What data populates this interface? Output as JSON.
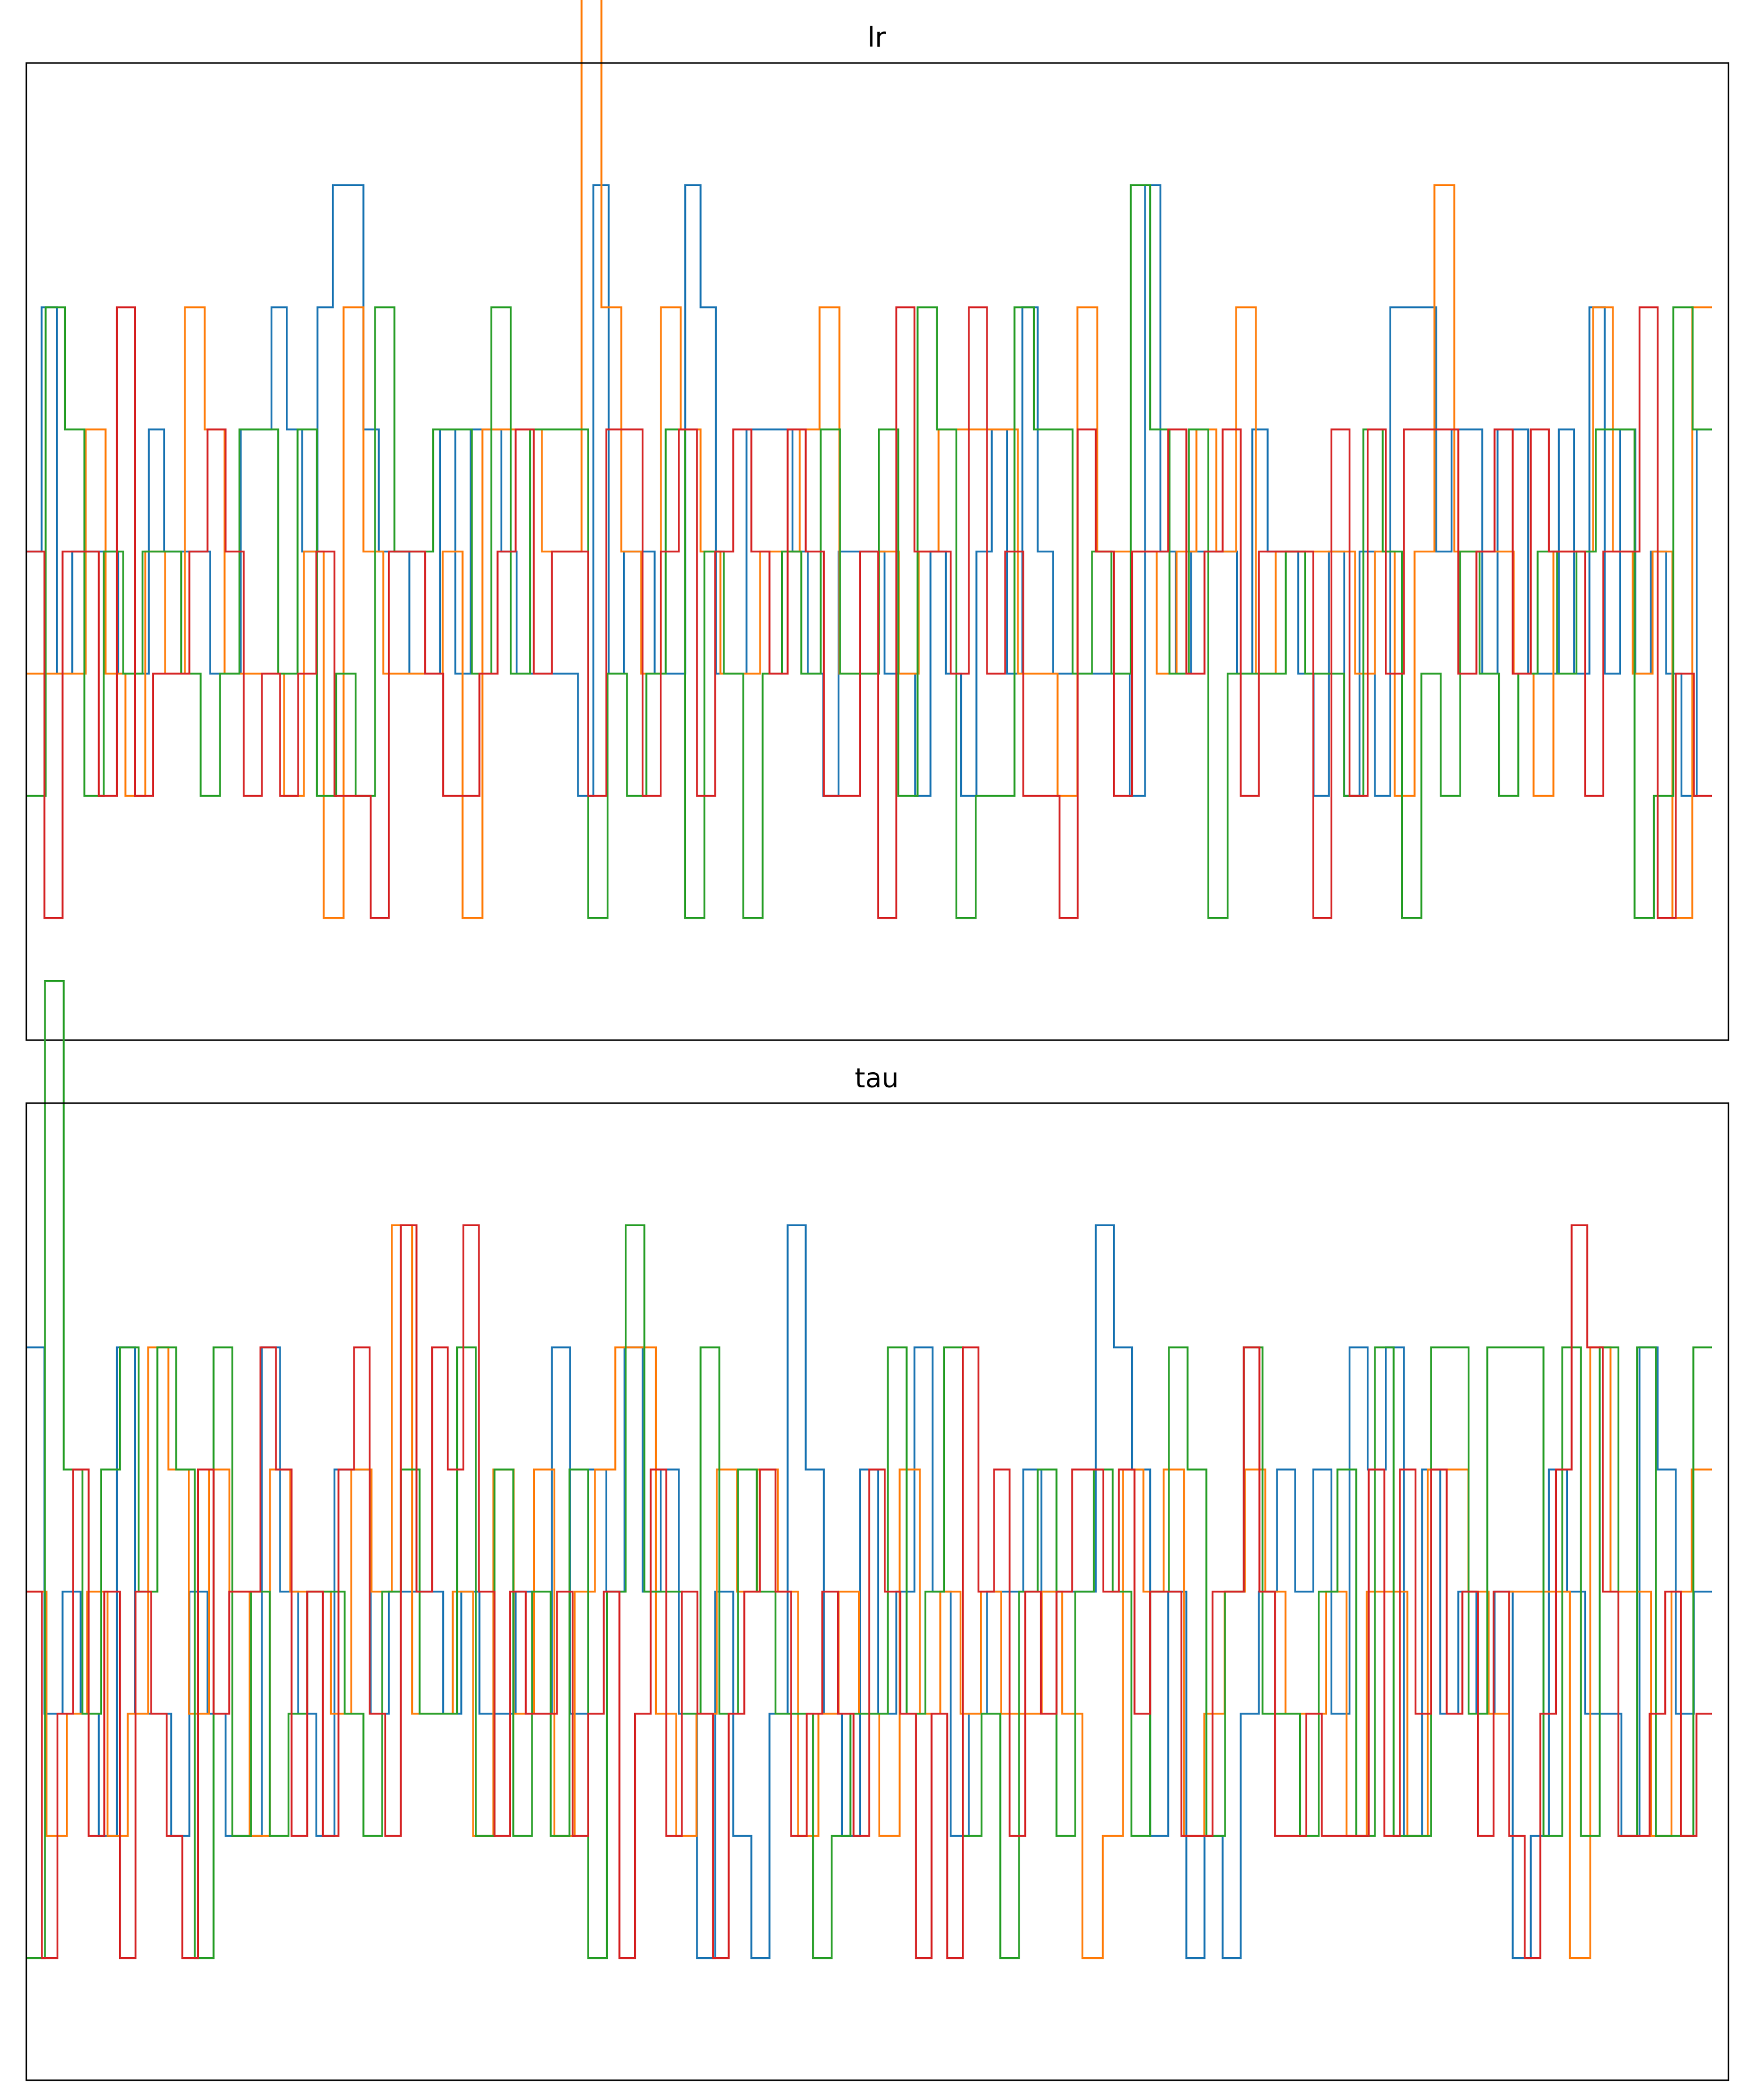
{
  "chart_data": [
    {
      "type": "line",
      "step": "post",
      "title": "lr",
      "xlabel": "",
      "ylabel": "",
      "ticks": "none",
      "grid": false,
      "legend": "none",
      "ylim": [
        0,
        8
      ],
      "series": [
        {
          "color": "#1f77b4",
          "values": [
            4,
            6,
            3,
            4,
            4,
            4,
            3,
            3,
            5,
            4,
            4,
            4,
            3,
            3,
            5,
            5,
            6,
            5,
            4,
            6,
            7,
            7,
            5,
            4,
            4,
            3,
            3,
            5,
            3,
            5,
            5,
            4,
            3,
            3,
            3,
            3,
            2,
            7,
            3,
            4,
            4,
            3,
            3,
            7,
            6,
            3,
            3,
            5,
            5,
            5,
            4,
            3,
            2,
            4,
            4,
            4,
            3,
            3,
            2,
            4,
            3,
            2,
            4,
            5,
            3,
            6,
            4,
            3,
            3,
            3,
            3,
            3,
            2,
            7,
            4,
            3,
            4,
            4,
            4,
            3,
            5,
            4,
            4,
            3,
            2,
            4,
            2,
            4,
            2,
            6,
            6,
            6,
            4,
            5,
            5,
            3,
            5,
            5,
            3,
            3,
            5,
            3,
            6,
            3,
            5,
            3,
            4,
            3,
            2,
            5
          ]
        },
        {
          "color": "#1f77b4",
          "values": []
        },
        {
          "color": "#ff7f0e",
          "values": [
            3,
            3,
            3,
            5,
            3,
            2,
            4,
            3,
            6,
            5,
            3,
            3,
            3,
            2,
            4,
            1,
            6,
            4,
            3,
            3,
            3,
            4,
            1,
            5,
            5,
            5,
            4,
            4,
            9,
            6,
            4,
            3,
            6,
            5,
            4,
            3,
            3,
            4,
            4,
            5,
            6,
            3,
            3,
            4,
            3,
            4,
            5,
            5,
            5,
            5,
            3,
            3,
            2,
            6,
            4,
            4,
            4,
            3,
            4,
            5,
            4,
            6,
            3,
            4,
            4,
            4,
            4,
            3,
            4,
            2,
            4,
            7,
            4,
            4,
            4,
            3,
            2,
            4,
            4,
            6,
            4,
            3,
            4,
            1,
            6
          ]
        },
        {
          "color": "#2ca02c",
          "values": [
            2,
            6,
            5,
            2,
            4,
            3,
            4,
            4,
            3,
            2,
            3,
            5,
            5,
            3,
            5,
            2,
            3,
            2,
            6,
            4,
            4,
            5,
            5,
            3,
            6,
            3,
            5,
            5,
            5,
            1,
            3,
            2,
            3,
            5,
            1,
            4,
            3,
            1,
            3,
            4,
            3,
            5,
            3,
            3,
            5,
            2,
            6,
            5,
            1,
            2,
            2,
            6,
            5,
            5,
            3,
            4,
            3,
            7,
            5,
            3,
            5,
            1,
            3,
            3,
            3,
            4,
            3,
            3,
            2,
            5,
            4,
            1,
            3,
            2,
            4,
            3,
            2,
            3,
            4,
            3,
            4,
            5,
            5,
            1,
            2,
            6,
            5
          ]
        },
        {
          "color": "#d62728",
          "values": [
            4,
            1,
            4,
            4,
            2,
            6,
            2,
            3,
            3,
            4,
            5,
            4,
            2,
            3,
            2,
            3,
            4,
            2,
            2,
            1,
            4,
            4,
            3,
            2,
            2,
            3,
            4,
            5,
            3,
            4,
            4,
            2,
            5,
            5,
            2,
            4,
            5,
            2,
            4,
            5,
            4,
            3,
            5,
            4,
            2,
            2,
            4,
            1,
            6,
            4,
            4,
            3,
            6,
            3,
            4,
            2,
            2,
            1,
            5,
            4,
            2,
            4,
            4,
            5,
            3,
            4,
            5,
            2,
            4,
            4,
            4,
            1,
            5,
            2,
            5,
            3,
            5,
            5,
            5,
            3,
            4,
            5,
            3,
            5,
            4,
            4,
            2,
            4,
            4,
            6,
            1,
            3,
            2
          ]
        }
      ]
    },
    {
      "type": "line",
      "step": "post",
      "title": "tau",
      "xlabel": "",
      "ylabel": "",
      "ticks": "none",
      "grid": false,
      "legend": "none",
      "ylim": [
        0,
        8
      ],
      "series": [
        {
          "color": "#1f77b4",
          "values": [
            6,
            3,
            4,
            3,
            2,
            6,
            3,
            3,
            2,
            4,
            3,
            2,
            2,
            6,
            4,
            3,
            2,
            5,
            5,
            3,
            4,
            4,
            4,
            3,
            4,
            3,
            3,
            4,
            3,
            6,
            3,
            5,
            4,
            6,
            4,
            5,
            3,
            1,
            4,
            2,
            1,
            3,
            7,
            5,
            3,
            2,
            5,
            3,
            4,
            6,
            4,
            2,
            3,
            4,
            4,
            5,
            4,
            4,
            4,
            7,
            6,
            5,
            2,
            4,
            1,
            2,
            1,
            3,
            4,
            5,
            4,
            5,
            3,
            6,
            5,
            6,
            2,
            5,
            3,
            4,
            3,
            4,
            1,
            2,
            5,
            4,
            3,
            3,
            2,
            6,
            5,
            3,
            4
          ]
        },
        {
          "color": "#ff7f0e",
          "values": [
            4,
            2,
            3,
            4,
            2,
            3,
            6,
            5,
            3,
            5,
            4,
            2,
            5,
            4,
            4,
            3,
            5,
            4,
            7,
            3,
            3,
            4,
            2,
            5,
            3,
            5,
            2,
            4,
            5,
            6,
            6,
            3,
            2,
            3,
            5,
            4,
            5,
            4,
            2,
            3,
            4,
            3,
            2,
            5,
            3,
            4,
            3,
            4,
            3,
            3,
            4,
            3,
            1,
            2,
            5,
            4,
            5,
            2,
            3,
            4,
            5,
            4,
            3,
            3,
            4,
            2,
            4,
            4,
            2,
            5,
            5,
            4,
            3,
            4,
            4,
            4,
            1,
            6,
            4,
            4,
            2,
            4,
            5
          ]
        },
        {
          "color": "#2ca02c",
          "values": [
            1,
            9,
            5,
            3,
            5,
            6,
            4,
            6,
            5,
            1,
            6,
            2,
            4,
            2,
            3,
            4,
            4,
            3,
            2,
            4,
            5,
            3,
            3,
            6,
            2,
            5,
            2,
            4,
            2,
            5,
            1,
            4,
            7,
            4,
            4,
            3,
            6,
            3,
            5,
            4,
            3,
            3,
            1,
            2,
            3,
            3,
            6,
            3,
            4,
            6,
            2,
            3,
            1,
            4,
            5,
            2,
            4,
            5,
            4,
            2,
            4,
            6,
            5,
            2,
            4,
            6,
            3,
            3,
            2,
            4,
            5,
            2,
            6,
            2,
            2,
            6,
            6,
            3,
            6,
            6,
            6,
            2,
            6,
            2,
            6,
            2,
            6,
            2,
            2,
            6
          ]
        },
        {
          "color": "#d62728",
          "values": [
            4,
            1,
            3,
            5,
            2,
            4,
            1,
            4,
            3,
            2,
            1,
            5,
            3,
            4,
            4,
            6,
            5,
            2,
            4,
            2,
            5,
            6,
            3,
            2,
            7,
            4,
            6,
            5,
            7,
            4,
            2,
            4,
            3,
            3,
            4,
            2,
            3,
            4,
            1,
            3,
            5,
            2,
            4,
            3,
            1,
            3,
            4,
            5,
            4,
            2,
            3,
            4,
            3,
            2,
            5,
            4,
            3,
            1,
            3,
            1,
            6,
            4,
            5,
            2,
            4,
            3,
            4,
            5,
            5,
            4,
            5,
            3,
            4,
            4,
            2,
            2,
            4,
            4,
            6,
            4,
            2,
            2,
            3,
            2,
            2,
            2,
            5,
            2,
            5,
            3,
            5,
            3,
            4,
            2,
            4,
            2,
            1,
            3,
            5,
            7,
            6,
            4,
            2,
            2,
            3,
            4,
            2,
            3
          ]
        }
      ]
    }
  ]
}
